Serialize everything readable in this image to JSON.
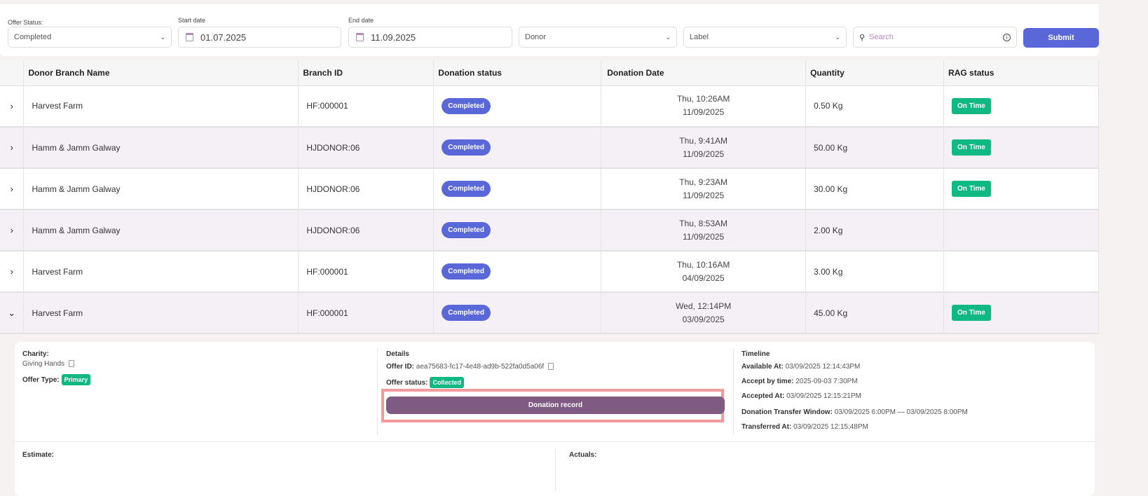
{
  "filters": {
    "offer_status": {
      "label": "Offer Status:",
      "value": "Completed"
    },
    "start_date": {
      "label": "Start date",
      "value": "01.07.2025"
    },
    "end_date": {
      "label": "End date",
      "value": "11.09.2025"
    },
    "donor": {
      "placeholder": "Donor"
    },
    "label": {
      "placeholder": "Label"
    },
    "search": {
      "placeholder": "Search"
    },
    "submit_label": "Submit"
  },
  "table": {
    "headers": [
      "Donor Branch Name",
      "Branch ID",
      "Donation status",
      "Donation Date",
      "Quantity",
      "RAG status"
    ],
    "rows": [
      {
        "name": "Harvest Farm",
        "branch": "HF:000001",
        "status": "Completed",
        "day": "Thu, 10:26AM",
        "date": "11/09/2025",
        "qty": "0.50 Kg",
        "rag": "On Time",
        "expanded": false
      },
      {
        "name": "Hamm & Jamm Galway",
        "branch": "HJDONOR:06",
        "status": "Completed",
        "day": "Thu, 9:41AM",
        "date": "11/09/2025",
        "qty": "50.00 Kg",
        "rag": "On Time",
        "expanded": false
      },
      {
        "name": "Hamm & Jamm Galway",
        "branch": "HJDONOR:06",
        "status": "Completed",
        "day": "Thu, 9:23AM",
        "date": "11/09/2025",
        "qty": "30.00 Kg",
        "rag": "On Time",
        "expanded": false
      },
      {
        "name": "Hamm & Jamm Galway",
        "branch": "HJDONOR:06",
        "status": "Completed",
        "day": "Thu, 8:53AM",
        "date": "11/09/2025",
        "qty": "2.00 Kg",
        "rag": "",
        "expanded": false
      },
      {
        "name": "Harvest Farm",
        "branch": "HF:000001",
        "status": "Completed",
        "day": "Thu, 10:16AM",
        "date": "04/09/2025",
        "qty": "3.00 Kg",
        "rag": "",
        "expanded": false
      },
      {
        "name": "Harvest Farm",
        "branch": "HF:000001",
        "status": "Completed",
        "day": "Wed, 12:14PM",
        "date": "03/09/2025",
        "qty": "45.00 Kg",
        "rag": "On Time",
        "expanded": true
      }
    ]
  },
  "details": {
    "charity_label": "Charity:",
    "charity": "Giving Hands",
    "offer_type_label": "Offer Type:",
    "offer_type": "Primary",
    "details_heading": "Details",
    "offer_id_label": "Offer ID:",
    "offer_id": "aea75683-fc17-4e48-ad9b-522fa0d5a06f",
    "offer_status_label": "Offer status:",
    "offer_status": "Collected",
    "donation_record_label": "Donation record",
    "timeline_heading": "Timeline",
    "timeline": [
      {
        "label": "Available At:",
        "value": "03/09/2025 12:14:43PM"
      },
      {
        "label": "Accept by time:",
        "value": "2025-09-03 7:30PM"
      },
      {
        "label": "Accepted At:",
        "value": "03/09/2025 12:15:21PM"
      },
      {
        "label": "Donation Transfer Window:",
        "value": "03/09/2025 6:00PM — 03/09/2025 8:00PM"
      },
      {
        "label": "Transferred At:",
        "value": "03/09/2025 12:15:48PM"
      }
    ],
    "estimate_label": "Estimate:",
    "actuals_label": "Actuals:"
  },
  "colors": {
    "primary": "#5a67d8",
    "success": "#10b981",
    "record_button": "#7f5a83",
    "highlight": "#f39b9b"
  }
}
